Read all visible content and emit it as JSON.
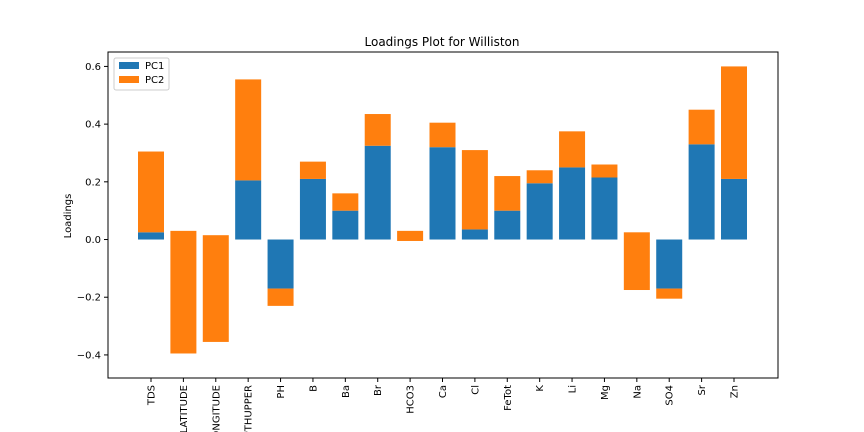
{
  "chart_data": {
    "type": "bar",
    "stacked": true,
    "title": "Loadings Plot for Williston",
    "xlabel": "",
    "ylabel": "Loadings",
    "ylim": [
      -0.48,
      0.65
    ],
    "yticks": [
      -0.4,
      -0.2,
      0.0,
      0.2,
      0.4,
      0.6
    ],
    "ytick_labels": [
      "−0.4",
      "−0.2",
      "0.0",
      "0.2",
      "0.4",
      "0.6"
    ],
    "grid": false,
    "legend_position": "top-left",
    "categories": [
      "TDS",
      "LATITUDE",
      "LONGITUDE",
      "DEPTHUPPER",
      "PH",
      "B",
      "Ba",
      "Br",
      "HCO3",
      "Ca",
      "Cl",
      "FeTot",
      "K",
      "Li",
      "Mg",
      "Na",
      "SO4",
      "Sr",
      "Zn"
    ],
    "category_labels": [
      "TDS",
      "LATITUDE",
      "LONGITUDE",
      "DEPTHUPPER",
      "PH",
      "B",
      "Ba",
      "Br",
      "HCO3",
      "Ca",
      "Cl",
      "FeTot",
      "K",
      "Li",
      "Mg",
      "Na",
      "SO4",
      "Sr",
      "Zn"
    ],
    "series": [
      {
        "name": "PC1",
        "color": "#1f77b4",
        "values": [
          0.025,
          0.0,
          0.0,
          0.205,
          -0.17,
          0.21,
          0.1,
          0.325,
          0.0,
          0.32,
          0.035,
          0.1,
          0.195,
          0.25,
          0.215,
          0.0,
          -0.17,
          0.33,
          0.21
        ]
      },
      {
        "name": "PC2",
        "color": "#ff7f0e",
        "values": [
          0.28,
          -0.425,
          -0.37,
          0.35,
          -0.06,
          0.06,
          0.06,
          0.11,
          -0.035,
          0.085,
          0.275,
          0.12,
          0.045,
          0.125,
          0.045,
          0.2,
          -0.035,
          0.12,
          0.39
        ],
        "start_values": [
          0.025,
          0.03,
          0.015,
          0.205,
          -0.17,
          0.21,
          0.1,
          0.325,
          0.03,
          0.32,
          0.035,
          0.1,
          0.195,
          0.25,
          0.215,
          -0.175,
          -0.17,
          0.33,
          0.21
        ]
      }
    ]
  }
}
